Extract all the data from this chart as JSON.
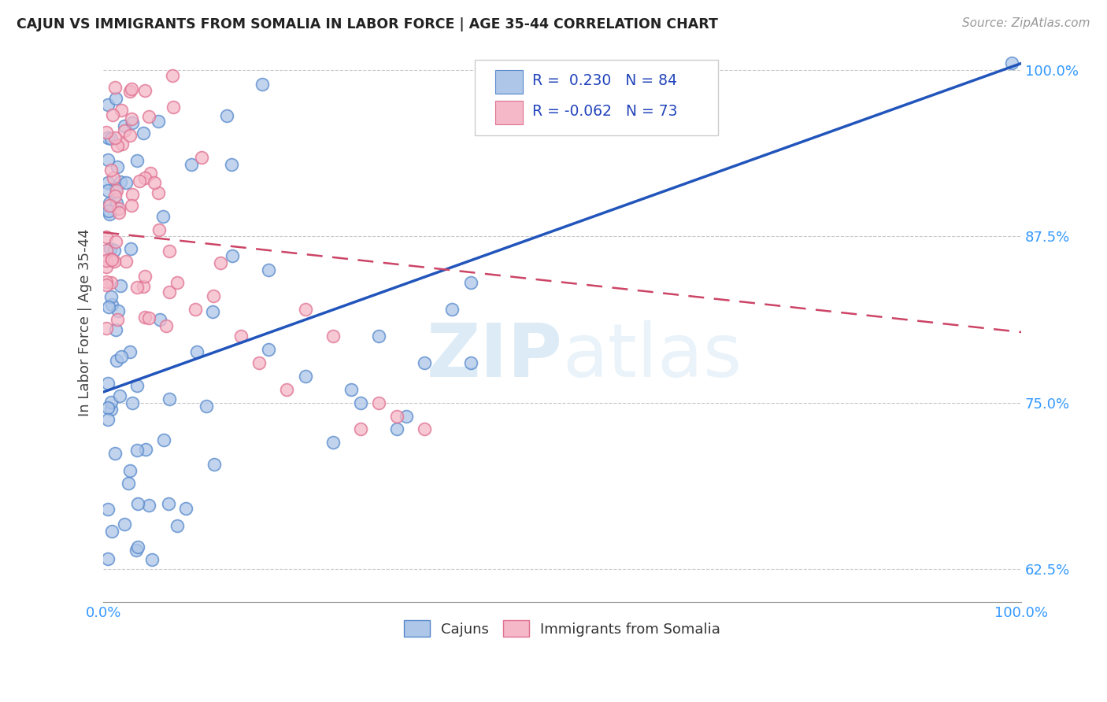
{
  "title": "CAJUN VS IMMIGRANTS FROM SOMALIA IN LABOR FORCE | AGE 35-44 CORRELATION CHART",
  "source": "Source: ZipAtlas.com",
  "ylabel": "In Labor Force | Age 35-44",
  "xlim": [
    0.0,
    1.0
  ],
  "ylim": [
    0.6,
    1.02
  ],
  "yticks": [
    0.625,
    0.75,
    0.875,
    1.0
  ],
  "ytick_labels": [
    "62.5%",
    "75.0%",
    "87.5%",
    "100.0%"
  ],
  "cajun_color": "#aec6e8",
  "somalia_color": "#f4b8c8",
  "cajun_edge_color": "#5588cc",
  "somalia_edge_color": "#e07090",
  "trend_blue_color": "#2255bb",
  "trend_pink_color": "#cc4466",
  "R_cajun": 0.23,
  "N_cajun": 84,
  "R_somalia": -0.062,
  "N_somalia": 73,
  "legend_label_cajun": "Cajuns",
  "legend_label_somalia": "Immigrants from Somalia",
  "watermark_zip": "ZIP",
  "watermark_atlas": "atlas",
  "background_color": "#ffffff",
  "grid_color": "#bbbbbb",
  "title_color": "#222222",
  "axis_label_color": "#444444",
  "tick_color": "#3399ff",
  "blue_trend_x0": 0.0,
  "blue_trend_y0": 0.758,
  "blue_trend_x1": 1.0,
  "blue_trend_y1": 1.005,
  "pink_trend_x0": 0.0,
  "pink_trend_y0": 0.878,
  "pink_trend_x1": 1.0,
  "pink_trend_y1": 0.803
}
